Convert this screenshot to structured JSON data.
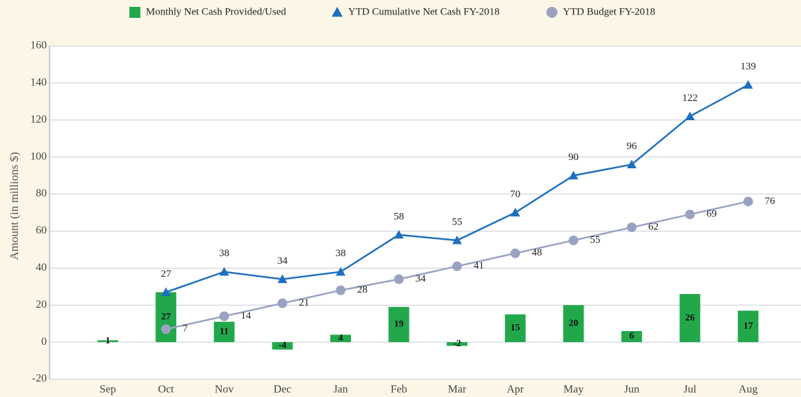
{
  "chart_data": {
    "type": "combo",
    "ylabel": "Amount (in millions $)",
    "categories": [
      "Sep",
      "Oct",
      "Nov",
      "Dec",
      "Jan",
      "Feb",
      "Mar",
      "Apr",
      "May",
      "Jun",
      "Jul",
      "Aug"
    ],
    "series": [
      {
        "name": "Monthly Net Cash Provided/Used",
        "type": "bar",
        "marker": "square",
        "color": "#22a84b",
        "values": [
          1,
          27,
          11,
          -4,
          4,
          19,
          -2,
          15,
          20,
          6,
          26,
          17
        ]
      },
      {
        "name": "YTD Cumulative Net Cash FY-2018",
        "type": "line",
        "marker": "triangle",
        "label_pos": "top",
        "color": "#1f6fbf",
        "values": [
          null,
          27,
          38,
          34,
          38,
          58,
          55,
          70,
          90,
          96,
          122,
          139
        ]
      },
      {
        "name": "YTD Budget FY-2018",
        "type": "line",
        "marker": "circle",
        "label_pos": "right",
        "color": "#9aa2c2",
        "values": [
          null,
          7,
          14,
          21,
          28,
          34,
          41,
          48,
          55,
          62,
          69,
          76
        ]
      }
    ],
    "ylim": [
      -20,
      160
    ],
    "yticks": [
      -20,
      0,
      20,
      40,
      60,
      80,
      100,
      120,
      140,
      160
    ],
    "grid": true
  }
}
